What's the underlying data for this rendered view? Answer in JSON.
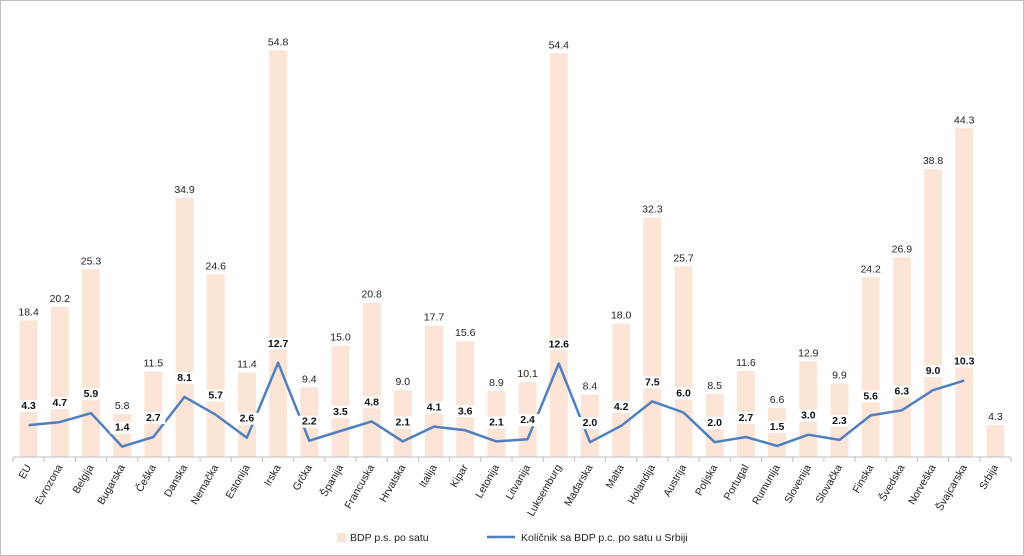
{
  "chart_data": {
    "type": "bar+line",
    "categories": [
      "EU",
      "Evrozona",
      "Belgija",
      "Bugarska",
      "Češka",
      "Danska",
      "Nemačka",
      "Estonija",
      "Irska",
      "Grčka",
      "Španija",
      "Francuska",
      "Hrvatska",
      "Italija",
      "Kipar",
      "Letonija",
      "Litvanija",
      "Luksemburg",
      "Mađarska",
      "Malta",
      "Holandija",
      "Austrija",
      "Poljska",
      "Portugal",
      "Rumunija",
      "Slovenija",
      "Slovačka",
      "Finska",
      "Švedska",
      "Norveška",
      "Švajcarska",
      "Srbija"
    ],
    "series": [
      {
        "name": "BDP p.s. po satu",
        "type": "bar",
        "color": "#fce4d6",
        "values": [
          18.4,
          20.2,
          25.3,
          5.8,
          11.5,
          34.9,
          24.6,
          11.4,
          54.8,
          9.4,
          15.0,
          20.8,
          9.0,
          17.7,
          15.6,
          8.9,
          10.1,
          54.4,
          8.4,
          18.0,
          32.3,
          25.7,
          8.5,
          11.6,
          6.6,
          12.9,
          9.9,
          24.2,
          26.9,
          38.8,
          44.3,
          4.3
        ]
      },
      {
        "name": "Količnik sa BDP p.c. po satu u Srbiji",
        "type": "line",
        "color": "#4f7fbf",
        "values": [
          4.3,
          4.7,
          5.9,
          1.4,
          2.7,
          8.1,
          5.7,
          2.6,
          12.7,
          2.2,
          3.5,
          4.8,
          2.1,
          4.1,
          3.6,
          2.1,
          2.4,
          12.6,
          2.0,
          4.2,
          7.5,
          6.0,
          2.0,
          2.7,
          1.5,
          3.0,
          2.3,
          5.6,
          6.3,
          9.0,
          10.3,
          null
        ]
      }
    ],
    "ylim": [
      0,
      56
    ],
    "legend_position": "bottom",
    "grid": false
  }
}
